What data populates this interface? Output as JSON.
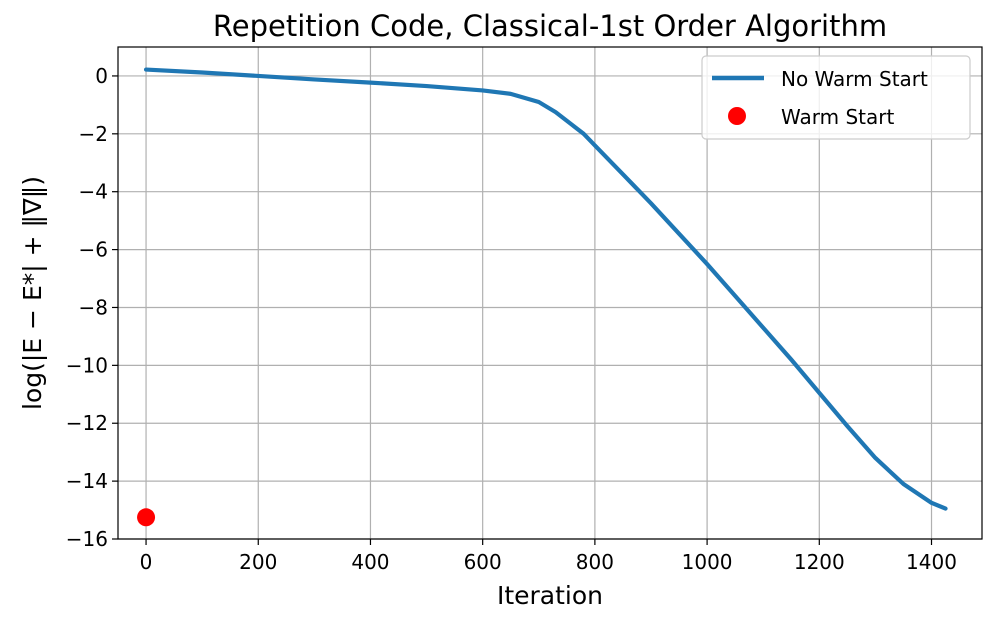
{
  "chart_data": {
    "type": "line",
    "title": "Repetition Code, Classical-1st Order Algorithm",
    "xlabel": "Iteration",
    "ylabel": "log(|E − E*| + ‖∇‖)",
    "xlim": [
      -50,
      1490
    ],
    "ylim": [
      -16,
      1
    ],
    "x_ticks": [
      0,
      200,
      400,
      600,
      800,
      1000,
      1200,
      1400
    ],
    "y_ticks": [
      0,
      -2,
      -4,
      -6,
      -8,
      -10,
      -12,
      -14,
      -16
    ],
    "x_tick_labels": [
      "0",
      "200",
      "400",
      "600",
      "800",
      "1000",
      "1200",
      "1400"
    ],
    "y_tick_labels": [
      "0",
      "−2",
      "−4",
      "−6",
      "−8",
      "−10",
      "−12",
      "−14",
      "−16"
    ],
    "grid": true,
    "legend_position": "top-right",
    "series": [
      {
        "name": "No Warm Start",
        "kind": "line",
        "color": "#1f77b4",
        "x": [
          0,
          100,
          200,
          300,
          400,
          500,
          600,
          650,
          700,
          730,
          760,
          780,
          800,
          850,
          900,
          950,
          1000,
          1050,
          1100,
          1150,
          1200,
          1250,
          1300,
          1350,
          1400,
          1425
        ],
        "y": [
          0.22,
          0.12,
          0.0,
          -0.12,
          -0.23,
          -0.35,
          -0.5,
          -0.62,
          -0.9,
          -1.25,
          -1.7,
          -2.0,
          -2.4,
          -3.4,
          -4.4,
          -5.45,
          -6.5,
          -7.6,
          -8.7,
          -9.8,
          -10.95,
          -12.1,
          -13.2,
          -14.1,
          -14.75,
          -14.95
        ]
      },
      {
        "name": "Warm Start",
        "kind": "scatter",
        "color": "#ff0000",
        "x": [
          0
        ],
        "y": [
          -15.25
        ]
      }
    ]
  }
}
